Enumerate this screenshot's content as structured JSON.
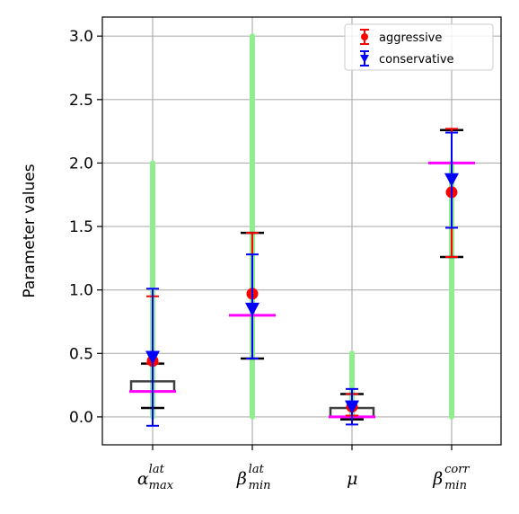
{
  "chart_data": {
    "type": "scatter",
    "title": "",
    "xlabel": "",
    "ylabel": "Parameter values",
    "ylim": [
      -0.22,
      3.15
    ],
    "y_ticks": [
      "0.0",
      "0.5",
      "1.0",
      "1.5",
      "2.0",
      "2.5",
      "3.0"
    ],
    "grid": true,
    "legend_position": "top-right",
    "categories": [
      {
        "base": "α",
        "sup": "lat",
        "sub": "max"
      },
      {
        "base": "β",
        "sup": "lat",
        "sub": "min"
      },
      {
        "base": "μ",
        "sup": "",
        "sub": ""
      },
      {
        "base": "β",
        "sup": "corr",
        "sub": "min"
      }
    ],
    "allowed_range": [
      {
        "min": 0.0,
        "max": 2.0
      },
      {
        "min": 0.0,
        "max": 3.0
      },
      {
        "min": 0.0,
        "max": 0.5
      },
      {
        "min": 0.0,
        "max": 2.0
      }
    ],
    "boxes": [
      {
        "low": 0.2,
        "high": 0.28,
        "median": 0.2,
        "whisker_low": 0.07,
        "whisker_high": 0.42
      },
      {
        "low": 0.8,
        "high": 0.8,
        "median": 0.8,
        "whisker_low": 0.46,
        "whisker_high": 1.45
      },
      {
        "low": 0.0,
        "high": 0.07,
        "median": 0.0,
        "whisker_low": -0.02,
        "whisker_high": 0.18
      },
      {
        "low": 2.0,
        "high": 2.0,
        "median": 2.0,
        "whisker_low": 1.26,
        "whisker_high": 2.26
      }
    ],
    "series": [
      {
        "name": "aggressive",
        "color": "#ff0000",
        "marker": "circle",
        "values": [
          0.44,
          0.97,
          0.08,
          1.77
        ],
        "err_low": [
          0.42,
          0.46,
          0.01,
          1.26
        ],
        "err_high": [
          0.95,
          1.45,
          0.18,
          2.27
        ]
      },
      {
        "name": "conservative",
        "color": "#0000ff",
        "marker": "triangle-down",
        "values": [
          0.47,
          0.85,
          0.08,
          1.87
        ],
        "err_low": [
          -0.07,
          0.46,
          -0.06,
          1.49
        ],
        "err_high": [
          1.01,
          1.28,
          0.22,
          2.24
        ]
      }
    ],
    "colors": {
      "range_bar": "#90ee90",
      "median": "#ff00ff",
      "box": "#404040",
      "whisker": "#000000",
      "grid": "#b0b0b0"
    }
  }
}
